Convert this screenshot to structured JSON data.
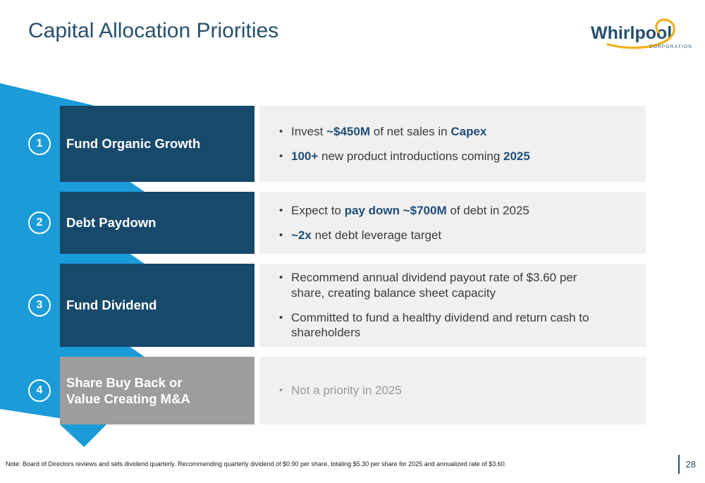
{
  "slide": {
    "title": "Capital Allocation Priorities",
    "page_number": "28",
    "footnote": "Note: Board of Directors reviews and sets dividend quarterly. Recommending quarterly dividend of $0.90 per share, totaling $5.30 per share for 2025 and annualized rate of $3.60."
  },
  "logo": {
    "brand": "Whirlpool",
    "subtext": "CORPORATION"
  },
  "colors": {
    "navy_title": "#26506E",
    "navy_box": "#17496B",
    "bold_text_navy": "#1F4E79",
    "bright_blue_ribbon": "#1B9CD8",
    "gray_box": "#9D9D9D",
    "panel_background": "#F0F0F0",
    "body_text": "#3C3C3C",
    "muted_text": "#9B9B9B",
    "logo_gold": "#F2B01E"
  },
  "priorities": [
    {
      "number": "1",
      "label": "Fund Organic Growth",
      "box_style": "navy",
      "bullets": [
        {
          "muted": false,
          "segments": [
            {
              "text": "Invest "
            },
            {
              "text": "~$450M",
              "bold": true
            },
            {
              "text": " of net sales in "
            },
            {
              "text": "Capex",
              "bold": true
            }
          ]
        },
        {
          "muted": false,
          "segments": [
            {
              "text": "100+",
              "bold": true
            },
            {
              "text": " new product introductions coming "
            },
            {
              "text": "2025",
              "bold": true
            }
          ]
        }
      ]
    },
    {
      "number": "2",
      "label": "Debt Paydown",
      "box_style": "navy",
      "bullets": [
        {
          "muted": false,
          "segments": [
            {
              "text": "Expect to "
            },
            {
              "text": "pay down ~$700M",
              "bold": true
            },
            {
              "text": " of debt in 2025"
            }
          ]
        },
        {
          "muted": false,
          "segments": [
            {
              "text": "~2x",
              "bold": true
            },
            {
              "text": " net debt leverage target"
            }
          ]
        }
      ]
    },
    {
      "number": "3",
      "label": "Fund Dividend",
      "box_style": "navy",
      "bullets": [
        {
          "muted": false,
          "segments": [
            {
              "text": "Recommend annual dividend payout rate of $3.60 per share, creating balance sheet capacity"
            }
          ]
        },
        {
          "muted": false,
          "segments": [
            {
              "text": "Committed to fund a healthy dividend and return cash to shareholders"
            }
          ]
        }
      ]
    },
    {
      "number": "4",
      "label": "Share Buy Back or\nValue Creating M&A",
      "box_style": "gray",
      "bullets": [
        {
          "muted": true,
          "segments": [
            {
              "text": "Not a priority in 2025"
            }
          ]
        }
      ]
    }
  ]
}
